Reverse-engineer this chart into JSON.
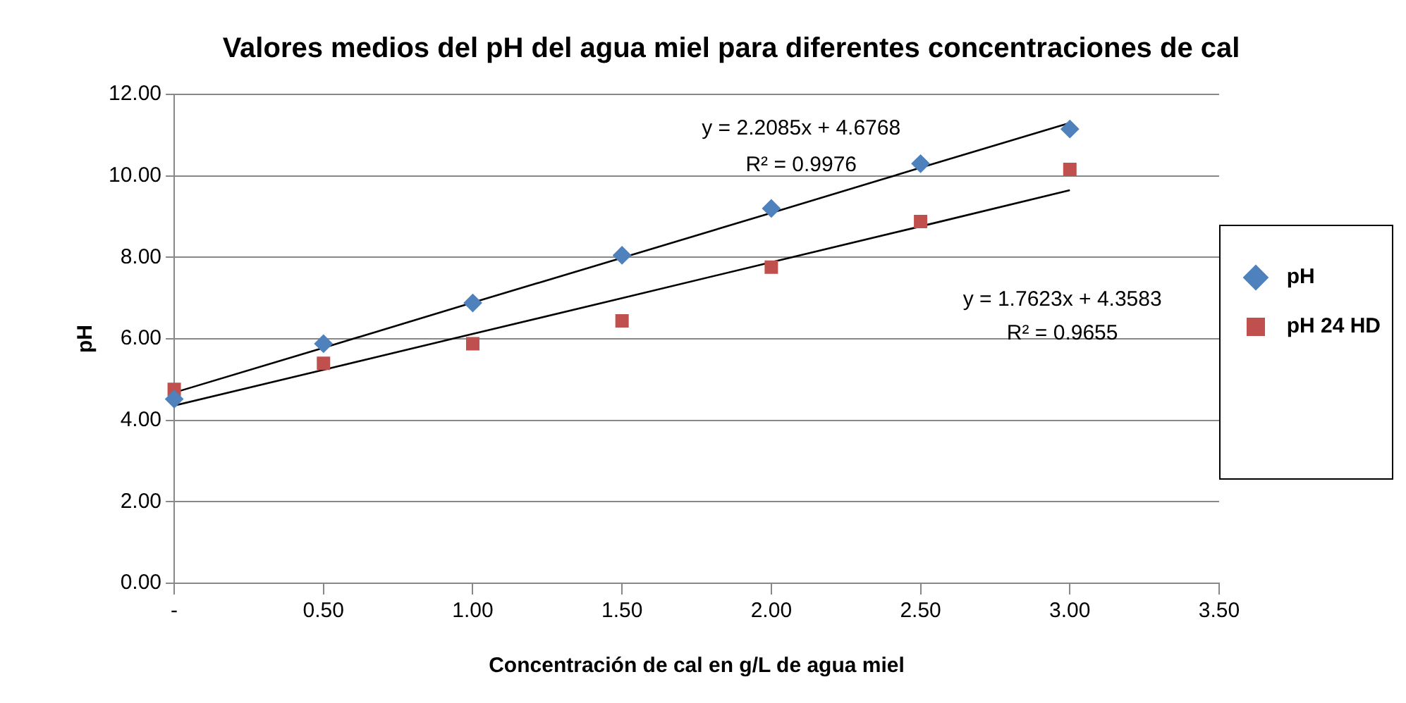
{
  "chart_data": {
    "type": "scatter",
    "title": "Valores medios del pH del agua miel para diferentes concentraciones de cal",
    "xlabel": "Concentración de cal en g/L de agua miel",
    "ylabel": "pH",
    "x": [
      0,
      0.5,
      1,
      1.5,
      2,
      2.5,
      3
    ],
    "series": [
      {
        "name": "pH",
        "color": "#4f81bd",
        "marker": "diamond",
        "values": [
          4.52,
          5.88,
          6.88,
          8.05,
          9.2,
          10.3,
          11.15
        ]
      },
      {
        "name": "pH 24 HD",
        "color": "#c0504d",
        "marker": "square",
        "values": [
          4.76,
          5.4,
          5.88,
          6.44,
          7.76,
          8.88,
          10.16
        ]
      },
      {
        "type": "line",
        "color": "#000000",
        "marker": "none",
        "values": [
          4.68,
          5.78,
          6.89,
          7.99,
          9.09,
          10.2,
          11.3
        ]
      },
      {
        "type": "line",
        "color": "#000000",
        "marker": "none",
        "values": [
          4.36,
          5.24,
          6.12,
          7.0,
          7.88,
          8.76,
          9.65
        ]
      }
    ],
    "xlim": [
      0,
      3.5
    ],
    "xticks": [
      {
        "value": 0,
        "label": "-"
      },
      {
        "value": 0.5,
        "label": "0.50"
      },
      {
        "value": 1,
        "label": "1.00"
      },
      {
        "value": 1.5,
        "label": "1.50"
      },
      {
        "value": 2,
        "label": "2.00"
      },
      {
        "value": 2.5,
        "label": "2.50"
      },
      {
        "value": 3,
        "label": "3.00"
      },
      {
        "value": 3.5,
        "label": "3.50"
      }
    ],
    "ylim": [
      0,
      12
    ],
    "yticks": [
      {
        "value": 0,
        "label": "0.00"
      },
      {
        "value": 2,
        "label": "2.00"
      },
      {
        "value": 4,
        "label": "4.00"
      },
      {
        "value": 6,
        "label": "6.00"
      },
      {
        "value": 8,
        "label": "8.00"
      },
      {
        "value": 10,
        "label": "10.00"
      },
      {
        "value": 12,
        "label": "12.00"
      }
    ],
    "grid": "y",
    "legend": "right",
    "annotations": [
      "y = 2.2085x + 4.6768",
      "R² = 0.9976",
      "y = 1.7623x + 4.3583",
      "R² = 0.9655"
    ]
  }
}
